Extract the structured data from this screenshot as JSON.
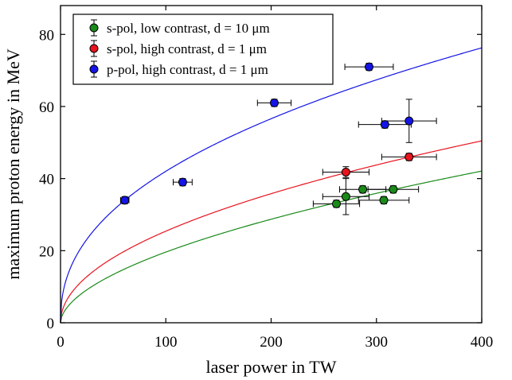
{
  "chart_data": {
    "type": "scatter",
    "title": "",
    "xlabel": "laser power in TW",
    "ylabel": "maximum proton energy in MeV",
    "xlim": [
      0,
      400
    ],
    "ylim": [
      0,
      88
    ],
    "xticks": [
      0,
      100,
      200,
      300,
      400
    ],
    "yticks": [
      0,
      20,
      40,
      60,
      80
    ],
    "grid": false,
    "legend_position": "top-left",
    "series": [
      {
        "name": "s-pol, low contrast, d = 10 μm",
        "color": "#1a8a1a",
        "points": [
          {
            "x": 262,
            "y": 33,
            "xerr": 22,
            "yerr": 1
          },
          {
            "x": 271,
            "y": 35,
            "xerr": 22,
            "yerr": 5
          },
          {
            "x": 287,
            "y": 37,
            "xerr": 22,
            "yerr": 1
          },
          {
            "x": 307,
            "y": 34,
            "xerr": 24,
            "yerr": 1
          },
          {
            "x": 316,
            "y": 37,
            "xerr": 24,
            "yerr": 1
          }
        ],
        "fit": {
          "a": 1.55,
          "b": 0.551
        }
      },
      {
        "name": "s-pol, high contrast, d = 1 μm",
        "color": "#e8141e",
        "points": [
          {
            "x": 271,
            "y": 41.8,
            "xerr": 22,
            "yerr": 1.5
          },
          {
            "x": 331,
            "y": 46,
            "xerr": 26,
            "yerr": 1
          }
        ],
        "fit": {
          "a": 2.6,
          "b": 0.495
        }
      },
      {
        "name": "p-pol, high contrast, d = 1 μm",
        "color": "#1414e6",
        "points": [
          {
            "x": 61,
            "y": 34,
            "xerr": 4,
            "yerr": 1
          },
          {
            "x": 116,
            "y": 39,
            "xerr": 9,
            "yerr": 1
          },
          {
            "x": 203,
            "y": 61,
            "xerr": 16,
            "yerr": 1
          },
          {
            "x": 293,
            "y": 71,
            "xerr": 23,
            "yerr": 1
          },
          {
            "x": 308,
            "y": 55,
            "xerr": 25,
            "yerr": 1
          },
          {
            "x": 331,
            "y": 56,
            "xerr": 26,
            "yerr": 6
          }
        ],
        "fit": {
          "a": 5.8,
          "b": 0.43
        }
      }
    ]
  }
}
